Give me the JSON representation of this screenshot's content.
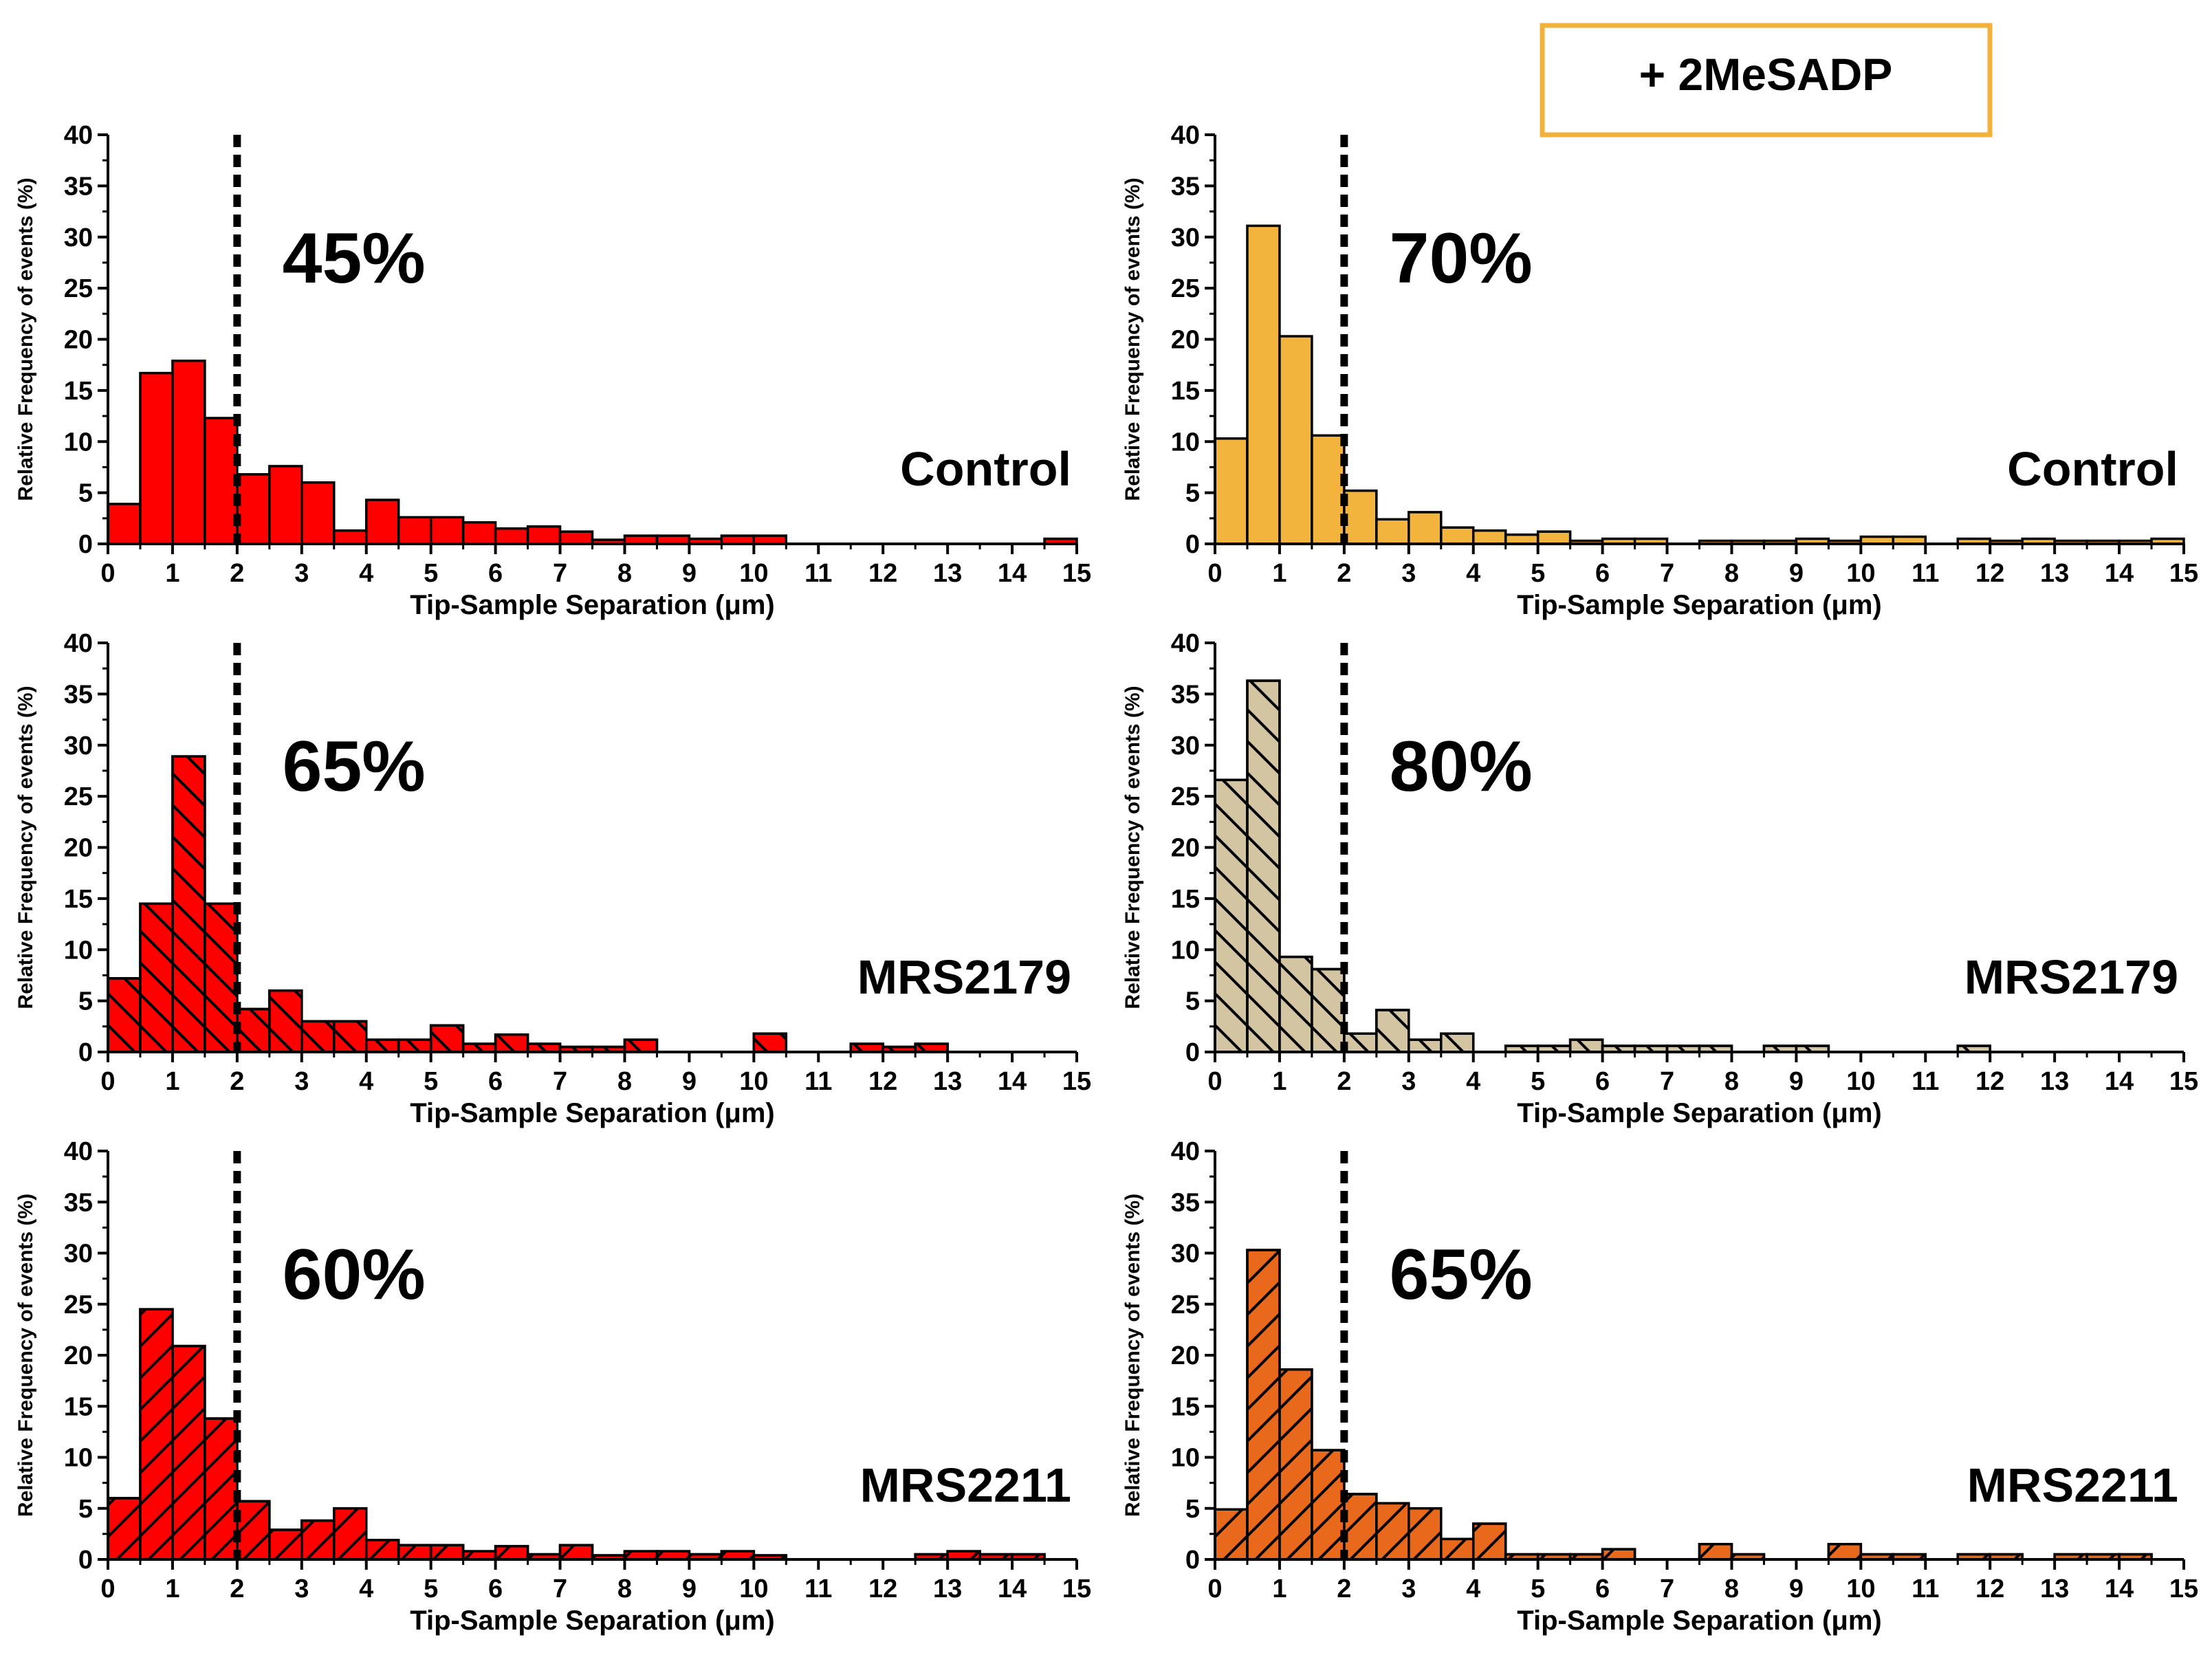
{
  "top_label": {
    "text": "+ 2MeSADP",
    "border_color": "#f2b13b"
  },
  "chart_data": [
    {
      "type": "bar",
      "position": "top-left",
      "xlabel": "Tip-Sample Separation (μm)",
      "ylabel": "Relative Frequency of events (%)",
      "xlim": [
        0,
        15
      ],
      "ylim": [
        0,
        40
      ],
      "xticks": [
        "0",
        "1",
        "2",
        "3",
        "4",
        "5",
        "6",
        "7",
        "8",
        "9",
        "10",
        "11",
        "12",
        "13",
        "14",
        "15"
      ],
      "yticks": [
        "0",
        "5",
        "10",
        "15",
        "20",
        "25",
        "30",
        "35",
        "40"
      ],
      "bin_width": 0.5,
      "threshold_line": 2,
      "percent_label": "45%",
      "condition": "Control",
      "color": "#ff0000",
      "hatch": "none",
      "values": [
        3.9,
        16.7,
        17.9,
        12.3,
        6.8,
        7.6,
        6.0,
        1.3,
        4.3,
        2.6,
        2.6,
        2.1,
        1.5,
        1.7,
        1.2,
        0.4,
        0.8,
        0.8,
        0.5,
        0.8,
        0.8,
        0,
        0,
        0,
        0,
        0,
        0,
        0,
        0,
        0.5
      ]
    },
    {
      "type": "bar",
      "position": "top-right",
      "xlabel": "Tip-Sample Separation (μm)",
      "ylabel": "Relative Frequency of events (%)",
      "xlim": [
        0,
        15
      ],
      "ylim": [
        0,
        40
      ],
      "xticks": [
        "0",
        "1",
        "2",
        "3",
        "4",
        "5",
        "6",
        "7",
        "8",
        "9",
        "10",
        "11",
        "12",
        "13",
        "14",
        "15"
      ],
      "yticks": [
        "0",
        "5",
        "10",
        "15",
        "20",
        "25",
        "30",
        "35",
        "40"
      ],
      "bin_width": 0.5,
      "threshold_line": 2,
      "percent_label": "70%",
      "condition": "Control",
      "color": "#f2b43c",
      "hatch": "none",
      "values": [
        10.3,
        31.1,
        20.3,
        10.6,
        5.2,
        2.4,
        3.1,
        1.6,
        1.3,
        0.9,
        1.2,
        0.3,
        0.5,
        0.5,
        0,
        0.3,
        0.3,
        0.3,
        0.5,
        0.3,
        0.7,
        0.7,
        0,
        0.5,
        0.3,
        0.5,
        0.3,
        0.3,
        0.3,
        0.5
      ]
    },
    {
      "type": "bar",
      "position": "middle-left",
      "xlabel": "Tip-Sample Separation (μm)",
      "ylabel": "Relative Frequency of events (%)",
      "xlim": [
        0,
        15
      ],
      "ylim": [
        0,
        40
      ],
      "xticks": [
        "0",
        "1",
        "2",
        "3",
        "4",
        "5",
        "6",
        "7",
        "8",
        "9",
        "10",
        "11",
        "12",
        "13",
        "14",
        "15"
      ],
      "yticks": [
        "0",
        "5",
        "10",
        "15",
        "20",
        "25",
        "30",
        "35",
        "40"
      ],
      "bin_width": 0.5,
      "threshold_line": 2,
      "percent_label": "65%",
      "condition": "MRS2179",
      "color": "#ff0000",
      "hatch": "backward",
      "values": [
        7.2,
        14.5,
        28.9,
        14.5,
        4.2,
        6.0,
        3.0,
        3.0,
        1.2,
        1.2,
        2.6,
        0.8,
        1.7,
        0.8,
        0.5,
        0.5,
        1.2,
        0,
        0,
        0,
        1.8,
        0,
        0,
        0.8,
        0.5,
        0.8,
        0,
        0,
        0,
        0
      ]
    },
    {
      "type": "bar",
      "position": "middle-right",
      "xlabel": "Tip-Sample Separation (μm)",
      "ylabel": "Relative Frequency of events (%)",
      "xlim": [
        0,
        15
      ],
      "ylim": [
        0,
        40
      ],
      "xticks": [
        "0",
        "1",
        "2",
        "3",
        "4",
        "5",
        "6",
        "7",
        "8",
        "9",
        "10",
        "11",
        "12",
        "13",
        "14",
        "15"
      ],
      "yticks": [
        "0",
        "5",
        "10",
        "15",
        "20",
        "25",
        "30",
        "35",
        "40"
      ],
      "bin_width": 0.5,
      "threshold_line": 2,
      "percent_label": "80%",
      "condition": "MRS2179",
      "color": "#d3c4a2",
      "hatch": "backward",
      "values": [
        26.6,
        36.3,
        9.3,
        8.1,
        1.8,
        4.1,
        1.2,
        1.8,
        0,
        0.6,
        0.6,
        1.2,
        0.6,
        0.6,
        0.6,
        0.6,
        0,
        0.6,
        0.6,
        0,
        0,
        0,
        0,
        0.6,
        0,
        0,
        0,
        0,
        0,
        0
      ]
    },
    {
      "type": "bar",
      "position": "bottom-left",
      "xlabel": "Tip-Sample Separation (μm)",
      "ylabel": "Relative Frequency of events (%)",
      "xlim": [
        0,
        15
      ],
      "ylim": [
        0,
        40
      ],
      "xticks": [
        "0",
        "1",
        "2",
        "3",
        "4",
        "5",
        "6",
        "7",
        "8",
        "9",
        "10",
        "11",
        "12",
        "13",
        "14",
        "15"
      ],
      "yticks": [
        "0",
        "5",
        "10",
        "15",
        "20",
        "25",
        "30",
        "35",
        "40"
      ],
      "bin_width": 0.5,
      "threshold_line": 2,
      "percent_label": "60%",
      "condition": "MRS2211",
      "color": "#ff0000",
      "hatch": "forward",
      "values": [
        6.0,
        24.5,
        20.9,
        13.8,
        5.7,
        2.9,
        3.8,
        5.0,
        1.9,
        1.4,
        1.4,
        0.8,
        1.3,
        0.5,
        1.4,
        0.4,
        0.8,
        0.8,
        0.5,
        0.8,
        0.4,
        0,
        0,
        0,
        0,
        0.5,
        0.8,
        0.5,
        0.5,
        0
      ]
    },
    {
      "type": "bar",
      "position": "bottom-right",
      "xlabel": "Tip-Sample Separation (μm)",
      "ylabel": "Relative Frequency of events (%)",
      "xlim": [
        0,
        15
      ],
      "ylim": [
        0,
        40
      ],
      "xticks": [
        "0",
        "1",
        "2",
        "3",
        "4",
        "5",
        "6",
        "7",
        "8",
        "9",
        "10",
        "11",
        "12",
        "13",
        "14",
        "15"
      ],
      "yticks": [
        "0",
        "5",
        "10",
        "15",
        "20",
        "25",
        "30",
        "35",
        "40"
      ],
      "bin_width": 0.5,
      "threshold_line": 2,
      "percent_label": "65%",
      "condition": "MRS2211",
      "color": "#e8691c",
      "hatch": "forward",
      "values": [
        4.9,
        30.3,
        18.6,
        10.7,
        6.4,
        5.5,
        5.0,
        2.0,
        3.5,
        0.5,
        0.5,
        0.5,
        1.0,
        0,
        0,
        1.5,
        0.5,
        0,
        0,
        1.5,
        0.5,
        0.5,
        0,
        0.5,
        0.5,
        0,
        0.5,
        0.5,
        0.5,
        0
      ]
    }
  ]
}
